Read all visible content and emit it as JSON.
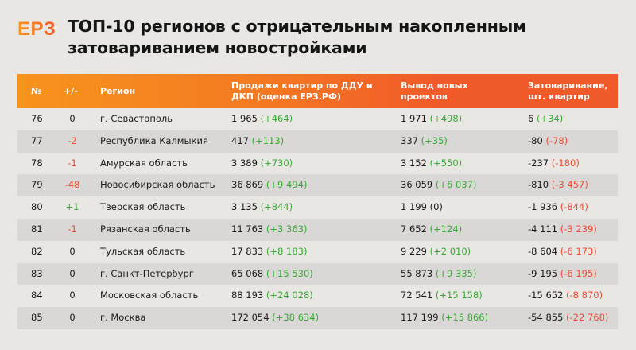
{
  "header": {
    "logo": "ЕРЗ",
    "title": "ТОП-10 регионов с отрицательным накопленным затовариванием новостройками"
  },
  "table": {
    "columns": [
      {
        "key": "rank",
        "label": "№"
      },
      {
        "key": "change",
        "label": "+/-"
      },
      {
        "key": "region",
        "label": "Регион"
      },
      {
        "key": "sales",
        "label": "Продажи квартир по ДДУ и ДКП (оценка ЕРЗ.РФ)"
      },
      {
        "key": "new_projects",
        "label": "Вывод новых проектов"
      },
      {
        "key": "overstock",
        "label": "Затоваривание, шт. квартир"
      }
    ],
    "rows": [
      {
        "rank": "76",
        "change": "0",
        "change_type": "neu",
        "region": "г. Севастополь",
        "sales": "1 965",
        "sales_delta": "(+464)",
        "sales_delta_type": "pos",
        "new": "1 971",
        "new_delta": "(+498)",
        "new_delta_type": "pos",
        "over": "6",
        "over_delta": "(+34)",
        "over_delta_type": "pos"
      },
      {
        "rank": "77",
        "change": "-2",
        "change_type": "neg",
        "region": "Республика Калмыкия",
        "sales": "417",
        "sales_delta": "(+113)",
        "sales_delta_type": "pos",
        "new": "337",
        "new_delta": "(+35)",
        "new_delta_type": "pos",
        "over": "-80",
        "over_delta": "(-78)",
        "over_delta_type": "neg"
      },
      {
        "rank": "78",
        "change": "-1",
        "change_type": "neg",
        "region": "Амурская область",
        "sales": "3 389",
        "sales_delta": "(+730)",
        "sales_delta_type": "pos",
        "new": "3 152",
        "new_delta": "(+550)",
        "new_delta_type": "pos",
        "over": "-237",
        "over_delta": "(-180)",
        "over_delta_type": "neg"
      },
      {
        "rank": "79",
        "change": "-48",
        "change_type": "neg",
        "region": "Новосибирская область",
        "sales": "36 869",
        "sales_delta": "(+9 494)",
        "sales_delta_type": "pos",
        "new": "36 059",
        "new_delta": "(+6 037)",
        "new_delta_type": "pos",
        "over": "-810",
        "over_delta": "(-3 457)",
        "over_delta_type": "neg"
      },
      {
        "rank": "80",
        "change": "+1",
        "change_type": "pos",
        "region": "Тверская область",
        "sales": "3 135",
        "sales_delta": "(+844)",
        "sales_delta_type": "pos",
        "new": "1 199",
        "new_delta": "(0)",
        "new_delta_type": "neu",
        "over": "-1 936",
        "over_delta": "(-844)",
        "over_delta_type": "neg"
      },
      {
        "rank": "81",
        "change": "-1",
        "change_type": "neg",
        "region": "Рязанская область",
        "sales": "11 763",
        "sales_delta": "(+3 363)",
        "sales_delta_type": "pos",
        "new": "7 652",
        "new_delta": "(+124)",
        "new_delta_type": "pos",
        "over": "-4 111",
        "over_delta": "(-3 239)",
        "over_delta_type": "neg"
      },
      {
        "rank": "82",
        "change": "0",
        "change_type": "neu",
        "region": "Тульская область",
        "sales": "17 833",
        "sales_delta": "(+8 183)",
        "sales_delta_type": "pos",
        "new": "9 229",
        "new_delta": "(+2 010)",
        "new_delta_type": "pos",
        "over": "-8 604",
        "over_delta": "(-6 173)",
        "over_delta_type": "neg"
      },
      {
        "rank": "83",
        "change": "0",
        "change_type": "neu",
        "region": "г. Санкт-Петербург",
        "sales": "65 068",
        "sales_delta": "(+15 530)",
        "sales_delta_type": "pos",
        "new": "55 873",
        "new_delta": "(+9 335)",
        "new_delta_type": "pos",
        "over": "-9 195",
        "over_delta": "(-6 195)",
        "over_delta_type": "neg"
      },
      {
        "rank": "84",
        "change": "0",
        "change_type": "neu",
        "region": "Московская область",
        "sales": "88 193",
        "sales_delta": "(+24 028)",
        "sales_delta_type": "pos",
        "new": "72 541",
        "new_delta": "(+15 158)",
        "new_delta_type": "pos",
        "over": "-15 652",
        "over_delta": "(-8 870)",
        "over_delta_type": "neg"
      },
      {
        "rank": "85",
        "change": "0",
        "change_type": "neu",
        "region": "г. Москва",
        "sales": "172 054",
        "sales_delta": "(+38 634)",
        "sales_delta_type": "pos",
        "new": "117 199",
        "new_delta": "(+15 866)",
        "new_delta_type": "pos",
        "over": "-54 855",
        "over_delta": "(-22 768)",
        "over_delta_type": "neg"
      }
    ]
  },
  "colors": {
    "brand_start": "#f7941d",
    "brand_end": "#f15a29",
    "positive": "#3aa935",
    "negative": "#ee4a36",
    "background": "#e9e7e4",
    "row_alt": "#d9d8d6"
  }
}
